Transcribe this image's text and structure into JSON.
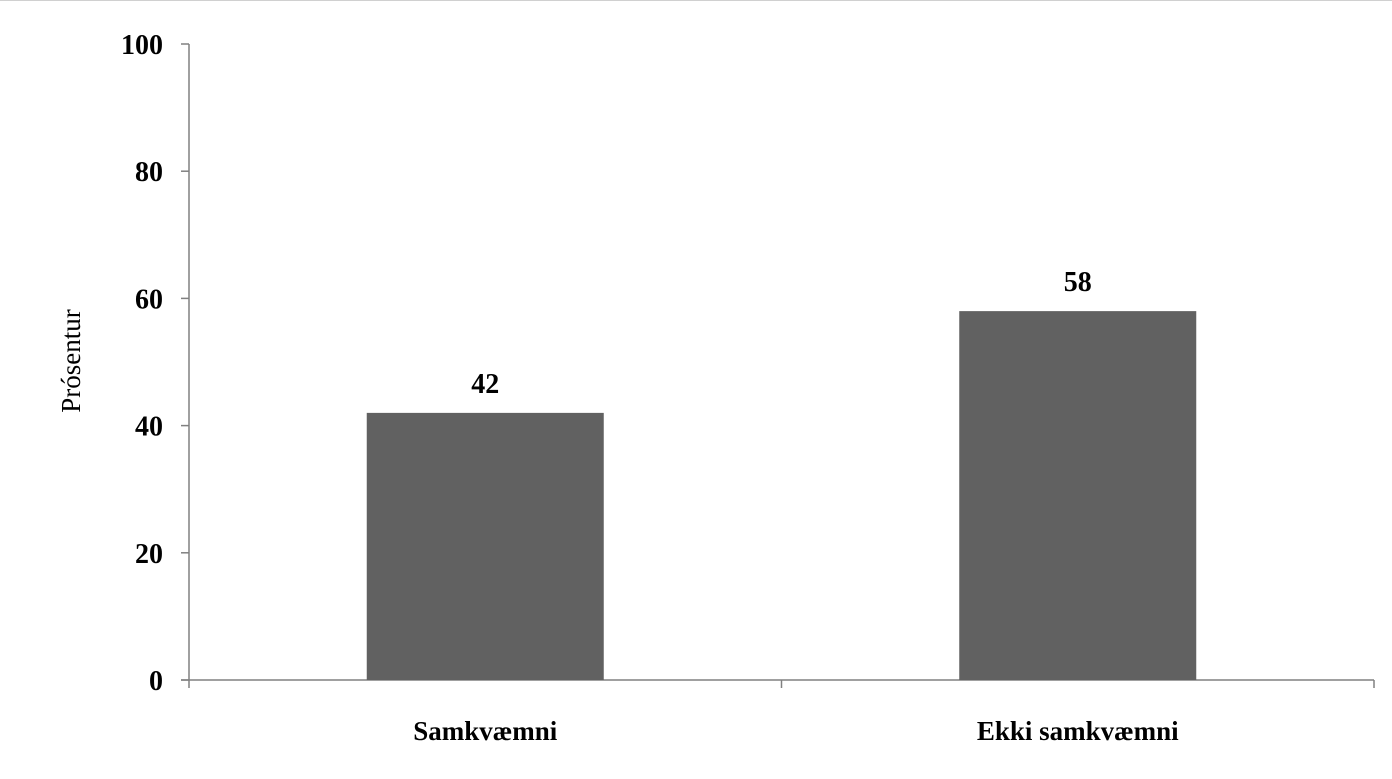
{
  "chart_data": {
    "type": "bar",
    "categories": [
      "Samkvæmni",
      "Ekki samkvæmni"
    ],
    "values": [
      42,
      58
    ],
    "data_labels": [
      "42",
      "58"
    ],
    "ylabel": "Prósentur",
    "xlabel": "",
    "ylim": [
      0,
      100
    ],
    "yticks": [
      "0",
      "20",
      "40",
      "60",
      "80",
      "100"
    ],
    "grid": false,
    "legend": "none",
    "bar_color": "#616161"
  }
}
